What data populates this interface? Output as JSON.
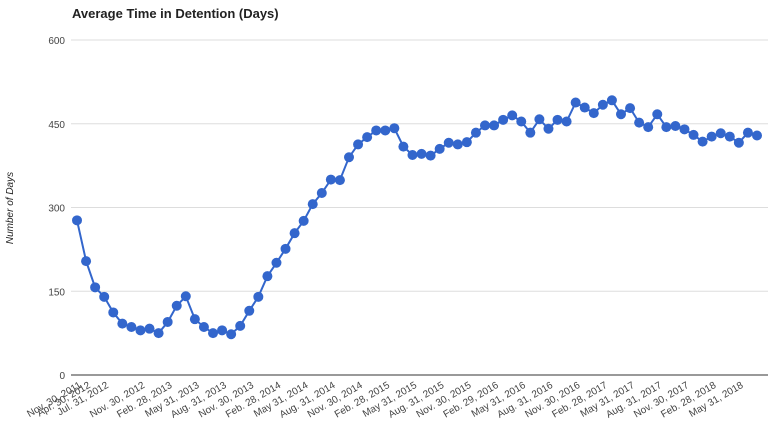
{
  "chart_data": {
    "type": "line",
    "title": "Average Time in Detention (Days)",
    "ylabel": "Number of Days",
    "xlabel": "",
    "ylim": [
      0,
      600
    ],
    "yticks": [
      0,
      150,
      300,
      450,
      600
    ],
    "grid": true,
    "legend": "none",
    "colors": {
      "series": "#3366cc",
      "grid": "#dddddd",
      "axis": "#333333"
    },
    "x_tick_labels": [
      {
        "index": 0,
        "label": "Nov. 30, 2011"
      },
      {
        "index": 1,
        "label": "Apr. 30, 2012"
      },
      {
        "index": 3,
        "label": "Jul. 31, 2012"
      },
      {
        "index": 7,
        "label": "Nov. 30, 2012"
      },
      {
        "index": 10,
        "label": "Feb. 28, 2013"
      },
      {
        "index": 13,
        "label": "May 31, 2013"
      },
      {
        "index": 16,
        "label": "Aug. 31, 2013"
      },
      {
        "index": 19,
        "label": "Nov. 30, 2013"
      },
      {
        "index": 22,
        "label": "Feb. 28, 2014"
      },
      {
        "index": 25,
        "label": "May 31, 2014"
      },
      {
        "index": 28,
        "label": "Aug. 31, 2014"
      },
      {
        "index": 31,
        "label": "Nov. 30, 2014"
      },
      {
        "index": 34,
        "label": "Feb. 28, 2015"
      },
      {
        "index": 37,
        "label": "May 31, 2015"
      },
      {
        "index": 40,
        "label": "Aug. 31, 2015"
      },
      {
        "index": 43,
        "label": "Nov. 30, 2015"
      },
      {
        "index": 46,
        "label": "Feb. 29, 2016"
      },
      {
        "index": 49,
        "label": "May 31, 2016"
      },
      {
        "index": 52,
        "label": "Aug. 31, 2016"
      },
      {
        "index": 55,
        "label": "Nov. 30, 2016"
      },
      {
        "index": 58,
        "label": "Feb. 28, 2017"
      },
      {
        "index": 61,
        "label": "May 31, 2017"
      },
      {
        "index": 64,
        "label": "Aug. 31, 2017"
      },
      {
        "index": 67,
        "label": "Nov. 30, 2017"
      },
      {
        "index": 70,
        "label": "Feb. 28, 2018"
      },
      {
        "index": 73,
        "label": "May 31, 2018"
      }
    ],
    "series": [
      {
        "values": [
          277,
          204,
          157,
          140,
          112,
          92,
          86,
          80,
          83,
          75,
          95,
          124,
          141,
          100,
          86,
          75,
          80,
          73,
          88,
          115,
          140,
          177,
          201,
          226,
          254,
          276,
          306,
          326,
          350,
          349,
          390,
          413,
          426,
          438,
          438,
          442,
          409,
          394,
          396,
          393,
          405,
          416,
          413,
          417,
          434,
          447,
          447,
          457,
          465,
          454,
          434,
          458,
          441,
          457,
          454,
          488,
          479,
          469,
          484,
          492,
          467,
          478,
          452,
          444,
          467,
          444,
          446,
          440,
          430,
          418,
          427,
          433,
          427,
          416,
          434,
          429
        ]
      }
    ]
  }
}
